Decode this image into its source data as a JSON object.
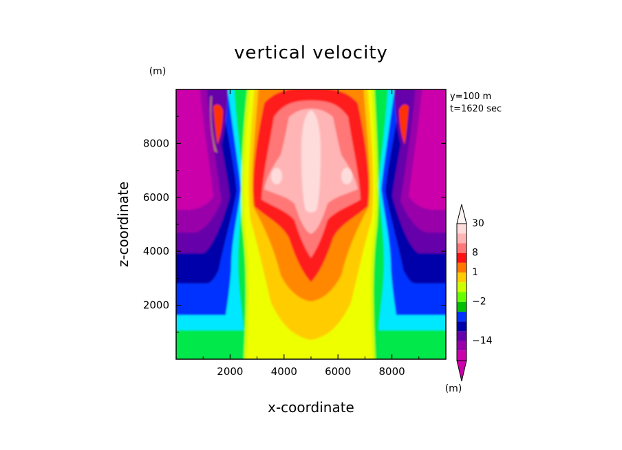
{
  "chart_data": {
    "type": "heatmap",
    "title": "vertical velocity",
    "xlabel": "x-coordinate",
    "ylabel": "z-coordinate",
    "x_unit": "(m)",
    "y_unit": "(m)",
    "colorbar_unit": "(m)",
    "info_lines": [
      "y=100 m",
      "t=1620 sec"
    ],
    "xlim": [
      0,
      10000
    ],
    "ylim": [
      0,
      10000
    ],
    "x_ticks": [
      2000,
      4000,
      6000,
      8000
    ],
    "y_ticks": [
      2000,
      4000,
      6000,
      8000
    ],
    "grid": false,
    "legend": "colorbar-right",
    "colorbar": {
      "colors": [
        "#cc00aa",
        "#9900aa",
        "#6600aa",
        "#0000aa",
        "#0033ff",
        "#00c000",
        "#66ff00",
        "#ccff00",
        "#ffcc00",
        "#ff7700",
        "#ff1111",
        "#ff7777",
        "#ffb5b5",
        "#ffdcdc"
      ],
      "labels": [
        {
          "text": "30",
          "index": 13
        },
        {
          "text": "8",
          "index": 10
        },
        {
          "text": "1",
          "index": 8
        },
        {
          "text": "−2",
          "index": 5
        },
        {
          "text": "−14",
          "index": 1
        }
      ]
    }
  }
}
